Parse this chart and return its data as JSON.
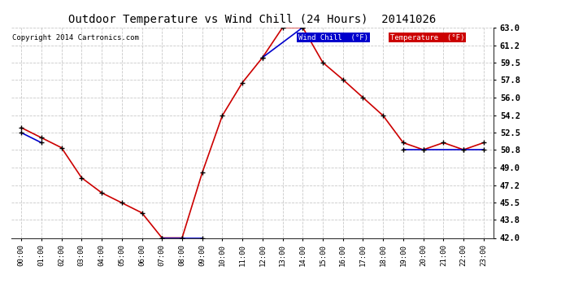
{
  "title": "Outdoor Temperature vs Wind Chill (24 Hours)  20141026",
  "copyright": "Copyright 2014 Cartronics.com",
  "background_color": "#ffffff",
  "grid_color": "#bbbbbb",
  "x_labels": [
    "00:00",
    "01:00",
    "02:00",
    "03:00",
    "04:00",
    "05:00",
    "06:00",
    "07:00",
    "08:00",
    "09:00",
    "10:00",
    "11:00",
    "12:00",
    "13:00",
    "14:00",
    "15:00",
    "16:00",
    "17:00",
    "18:00",
    "19:00",
    "20:00",
    "21:00",
    "22:00",
    "23:00"
  ],
  "y_ticks": [
    42.0,
    43.8,
    45.5,
    47.2,
    49.0,
    50.8,
    52.5,
    54.2,
    56.0,
    57.8,
    59.5,
    61.2,
    63.0
  ],
  "ylim": [
    42.0,
    63.0
  ],
  "temperature_color": "#cc0000",
  "wind_chill_color": "#0000cc",
  "temperature_data": [
    53.0,
    52.0,
    51.0,
    48.0,
    46.5,
    45.5,
    44.5,
    42.0,
    42.0,
    48.5,
    54.2,
    57.5,
    60.0,
    63.0,
    63.0,
    59.5,
    57.8,
    56.0,
    54.2,
    51.5,
    50.8,
    51.5,
    50.8,
    51.5
  ],
  "wc_segments": [
    {
      "x": [
        0,
        1
      ],
      "y": [
        52.5,
        51.5
      ]
    },
    {
      "x": [
        7,
        8,
        9
      ],
      "y": [
        42.0,
        42.0,
        42.0
      ]
    },
    {
      "x": [
        12,
        14
      ],
      "y": [
        60.0,
        63.0
      ]
    },
    {
      "x": [
        19,
        20,
        22,
        23
      ],
      "y": [
        50.8,
        50.8,
        50.8,
        50.8
      ]
    }
  ],
  "legend_wind_chill_label": "Wind Chill  (°F)",
  "legend_temperature_label": "Temperature  (°F)",
  "legend_wc_bg": "#0000cc",
  "legend_temp_bg": "#cc0000"
}
